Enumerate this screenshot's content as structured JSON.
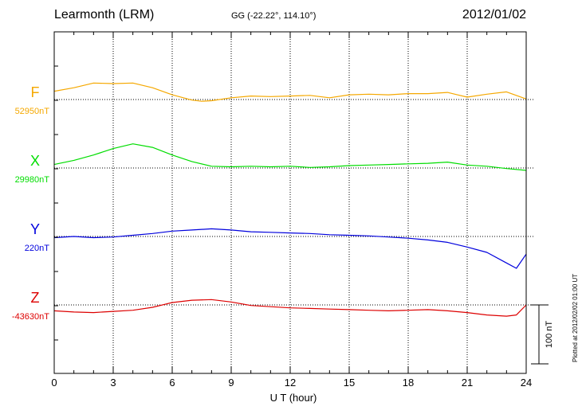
{
  "header": {
    "station": "Learmonth (LRM)",
    "coords": "GG (-22.22°, 114.10°)",
    "date": "2012/01/02"
  },
  "credit": "Plotted at 2012/02/02 01:00 UT",
  "chart_data": {
    "type": "line",
    "title": "Learmonth (LRM)",
    "xlabel": "U T (hour)",
    "ylabel": "",
    "xlim": [
      0,
      24
    ],
    "xticks": [
      "0",
      "3",
      "6",
      "9",
      "12",
      "15",
      "18",
      "21",
      "24"
    ],
    "grid": true,
    "scale_bar": {
      "label": "100 nT",
      "value_nT": 100
    },
    "series": [
      {
        "name": "F",
        "baseline_label": "52950nT",
        "baseline_nT": 52950,
        "color": "#f5a800",
        "x": [
          0,
          1,
          2,
          3,
          4,
          5,
          6,
          7,
          7.5,
          8,
          9,
          10,
          11,
          12,
          13,
          14,
          15,
          16,
          17,
          18,
          19,
          20,
          20.5,
          21,
          22,
          23,
          24
        ],
        "y": [
          52964,
          52970,
          52978,
          52977,
          52978,
          52970,
          52958,
          52949,
          52947,
          52948,
          52953,
          52956,
          52955,
          52956,
          52957,
          52953,
          52958,
          52959,
          52958,
          52960,
          52960,
          52962,
          52958,
          52954,
          52959,
          52963,
          52951
        ]
      },
      {
        "name": "X",
        "baseline_label": "29980nT",
        "baseline_nT": 29980,
        "color": "#00dd00",
        "x": [
          0,
          1,
          2,
          3,
          4,
          5,
          6,
          7,
          8,
          9,
          10,
          11,
          12,
          13,
          14,
          15,
          16,
          17,
          18,
          19,
          20,
          21,
          22,
          23,
          24
        ],
        "y": [
          29986,
          29993,
          30002,
          30013,
          30021,
          30015,
          30002,
          29991,
          29983,
          29982,
          29983,
          29982,
          29983,
          29981,
          29982,
          29984,
          29985,
          29986,
          29987,
          29988,
          29990,
          29985,
          29983,
          29979,
          29976
        ]
      },
      {
        "name": "Y",
        "baseline_label": "220nT",
        "baseline_nT": 220,
        "color": "#0000dd",
        "x": [
          0,
          1,
          2,
          3,
          4,
          5,
          6,
          7,
          8,
          9,
          10,
          11,
          12,
          13,
          14,
          15,
          16,
          17,
          18,
          19,
          20,
          21,
          22,
          23,
          23.5,
          24
        ],
        "y": [
          218,
          220,
          218,
          219,
          222,
          225,
          229,
          231,
          233,
          231,
          228,
          227,
          226,
          225,
          223,
          222,
          221,
          219,
          217,
          214,
          210,
          202,
          193,
          175,
          166,
          190
        ]
      },
      {
        "name": "Z",
        "baseline_label": "-43630nT",
        "baseline_nT": -43630,
        "color": "#dd0000",
        "x": [
          0,
          1,
          2,
          3,
          4,
          5,
          6,
          7,
          8,
          9,
          10,
          11,
          12,
          13,
          14,
          15,
          16,
          17,
          18,
          19,
          20,
          21,
          22,
          23,
          23.5,
          24
        ],
        "y": [
          -43640,
          -43642,
          -43643,
          -43641,
          -43639,
          -43634,
          -43626,
          -43622,
          -43621,
          -43625,
          -43631,
          -43633,
          -43635,
          -43636,
          -43637,
          -43638,
          -43639,
          -43640,
          -43639,
          -43638,
          -43640,
          -43643,
          -43647,
          -43649,
          -43647,
          -43630
        ]
      }
    ]
  }
}
